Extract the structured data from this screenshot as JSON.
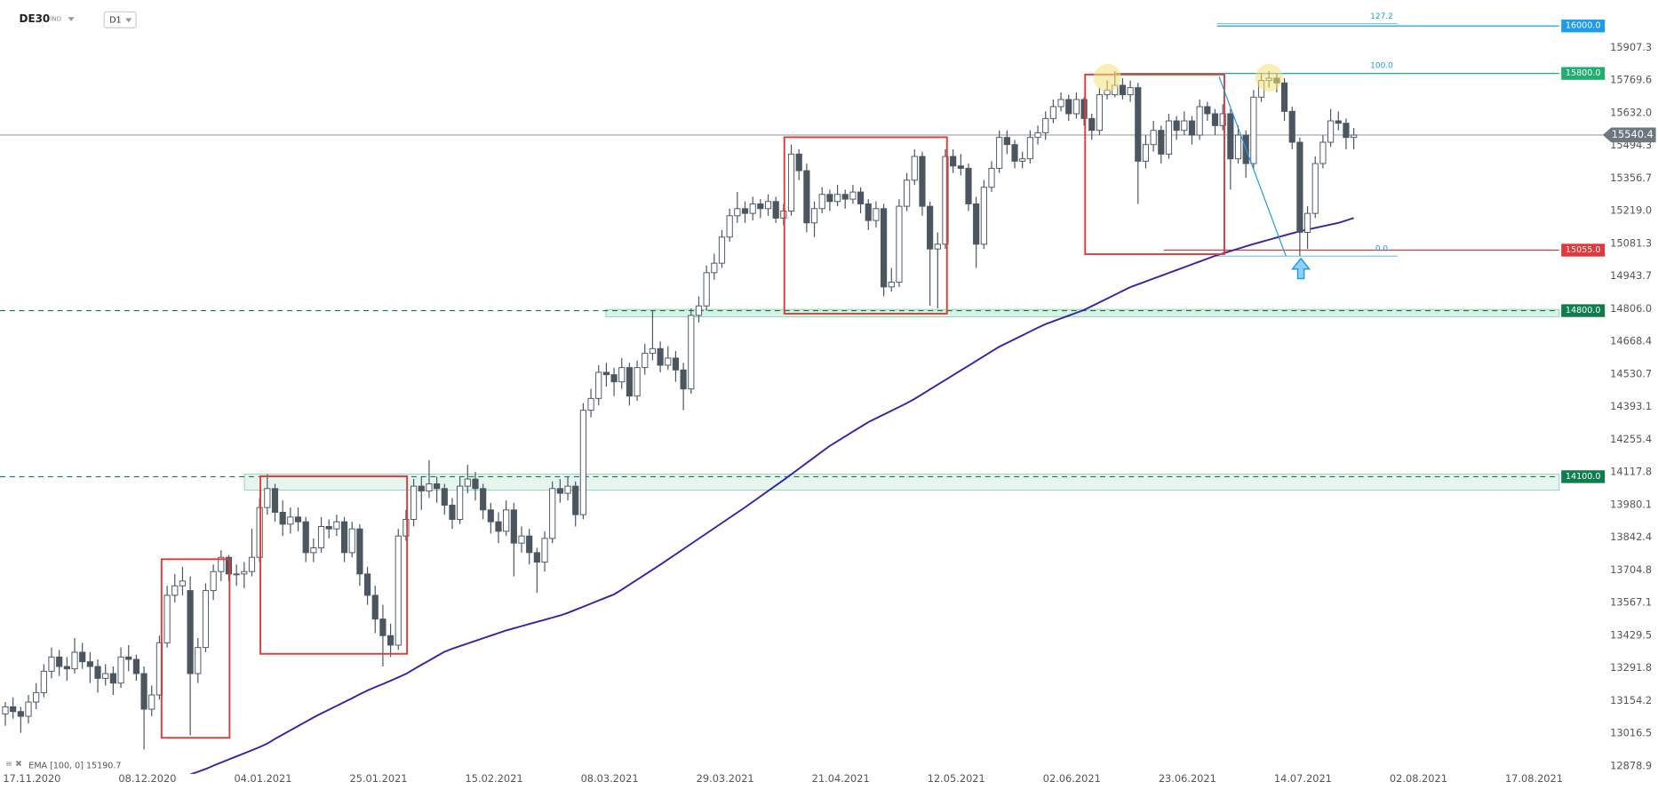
{
  "chart_data": {
    "type": "candlestick",
    "symbol": "DE30",
    "symbol_class": "IND",
    "timeframe": "D1",
    "up_color": "#ffffff",
    "down_color": "#4b5661",
    "ylim": [
      12847,
      16109
    ],
    "yticks": [
      15907.3,
      15769.6,
      {
        "value": 15632,
        "label": "15632.0"
      },
      15494.3,
      15356.7,
      {
        "value": 15219,
        "label": "15219.0"
      },
      15081.3,
      14943.7,
      {
        "value": 14806,
        "label": "14806.0"
      },
      14668.4,
      14530.7,
      14393.1,
      14255.4,
      14117.8,
      13980.1,
      13842.4,
      13704.8,
      13567.1,
      13429.5,
      13291.8,
      13154.2,
      13016.5,
      12878.9
    ],
    "xtick_labels": [
      "17.11.2020",
      "08.12.2020",
      "04.01.2021",
      "25.01.2021",
      "15.02.2021",
      "08.03.2021",
      "29.03.2021",
      "21.04.2021",
      "12.05.2021",
      "02.06.2021",
      "23.06.2021",
      "14.07.2021",
      "02.08.2021",
      "17.08.2021"
    ],
    "candles": [
      [
        13100,
        13150,
        13050,
        13130
      ],
      [
        13130,
        13170,
        13080,
        13110
      ],
      [
        13110,
        13130,
        13020,
        13090
      ],
      [
        13090,
        13180,
        13060,
        13150
      ],
      [
        13150,
        13230,
        13120,
        13190
      ],
      [
        13190,
        13310,
        13170,
        13280
      ],
      [
        13280,
        13380,
        13250,
        13340
      ],
      [
        13340,
        13370,
        13260,
        13300
      ],
      [
        13300,
        13340,
        13240,
        13290
      ],
      [
        13290,
        13420,
        13270,
        13360
      ],
      [
        13360,
        13400,
        13290,
        13320
      ],
      [
        13320,
        13360,
        13230,
        13300
      ],
      [
        13300,
        13330,
        13190,
        13250
      ],
      [
        13250,
        13310,
        13220,
        13270
      ],
      [
        13270,
        13300,
        13180,
        13230
      ],
      [
        13230,
        13380,
        13210,
        13340
      ],
      [
        13340,
        13390,
        13280,
        13330
      ],
      [
        13330,
        13350,
        13240,
        13270
      ],
      [
        13270,
        13300,
        12950,
        13120
      ],
      [
        13120,
        13220,
        13090,
        13180
      ],
      [
        13180,
        13430,
        13160,
        13400
      ],
      [
        13400,
        13640,
        13380,
        13600
      ],
      [
        13600,
        13690,
        13570,
        13640
      ],
      [
        13640,
        13720,
        13600,
        13660
      ],
      [
        13620,
        13680,
        13010,
        13270
      ],
      [
        13270,
        13420,
        13230,
        13380
      ],
      [
        13380,
        13650,
        13360,
        13620
      ],
      [
        13620,
        13730,
        13580,
        13700
      ],
      [
        13700,
        13790,
        13660,
        13760
      ],
      [
        13760,
        13770,
        13660,
        13690
      ],
      [
        13690,
        13730,
        13640,
        13690
      ],
      [
        13690,
        13740,
        13630,
        13700
      ],
      [
        13700,
        13880,
        13680,
        13760
      ],
      [
        13760,
        14010,
        13740,
        13970
      ],
      [
        13970,
        14110,
        13940,
        14050
      ],
      [
        14050,
        14070,
        13910,
        13950
      ],
      [
        13950,
        14000,
        13850,
        13900
      ],
      [
        13900,
        13970,
        13860,
        13930
      ],
      [
        13930,
        13970,
        13870,
        13910
      ],
      [
        13910,
        13930,
        13740,
        13780
      ],
      [
        13780,
        13840,
        13740,
        13800
      ],
      [
        13800,
        13930,
        13780,
        13890
      ],
      [
        13890,
        13920,
        13840,
        13880
      ],
      [
        13880,
        13940,
        13850,
        13910
      ],
      [
        13910,
        13930,
        13740,
        13780
      ],
      [
        13780,
        13910,
        13760,
        13880
      ],
      [
        13880,
        13900,
        13640,
        13690
      ],
      [
        13690,
        13720,
        13560,
        13600
      ],
      [
        13600,
        13640,
        13440,
        13500
      ],
      [
        13500,
        13560,
        13300,
        13430
      ],
      [
        13430,
        13480,
        13340,
        13390
      ],
      [
        13390,
        13880,
        13370,
        13850
      ],
      [
        13850,
        13960,
        13830,
        13920
      ],
      [
        13920,
        14090,
        13890,
        14060
      ],
      [
        14060,
        14100,
        13960,
        14040
      ],
      [
        14040,
        14170,
        14010,
        14070
      ],
      [
        14070,
        14100,
        13990,
        14050
      ],
      [
        14050,
        14070,
        13940,
        13980
      ],
      [
        13980,
        14010,
        13880,
        13920
      ],
      [
        13920,
        14100,
        13900,
        14060
      ],
      [
        14060,
        14150,
        14030,
        14090
      ],
      [
        14090,
        14120,
        14000,
        14050
      ],
      [
        14050,
        14070,
        13920,
        13960
      ],
      [
        13960,
        13990,
        13860,
        13910
      ],
      [
        13910,
        13950,
        13820,
        13870
      ],
      [
        13870,
        14000,
        13850,
        13960
      ],
      [
        13960,
        13990,
        13680,
        13820
      ],
      [
        13820,
        13890,
        13780,
        13850
      ],
      [
        13850,
        13880,
        13730,
        13780
      ],
      [
        13780,
        13800,
        13610,
        13740
      ],
      [
        13740,
        13870,
        13700,
        13840
      ],
      [
        13840,
        14080,
        13820,
        14050
      ],
      [
        14050,
        14090,
        13990,
        14030
      ],
      [
        14030,
        14100,
        14000,
        14060
      ],
      [
        14060,
        14080,
        13890,
        13940
      ],
      [
        13940,
        14410,
        13920,
        14380
      ],
      [
        14380,
        14470,
        14350,
        14430
      ],
      [
        14430,
        14570,
        14400,
        14540
      ],
      [
        14540,
        14580,
        14480,
        14530
      ],
      [
        14530,
        14560,
        14440,
        14500
      ],
      [
        14500,
        14600,
        14470,
        14560
      ],
      [
        14560,
        14580,
        14400,
        14440
      ],
      [
        14440,
        14590,
        14420,
        14560
      ],
      [
        14560,
        14660,
        14530,
        14620
      ],
      [
        14620,
        14800,
        14590,
        14640
      ],
      [
        14640,
        14670,
        14540,
        14570
      ],
      [
        14570,
        14650,
        14550,
        14600
      ],
      [
        14600,
        14630,
        14500,
        14550
      ],
      [
        14550,
        14580,
        14380,
        14470
      ],
      [
        14470,
        14810,
        14450,
        14780
      ],
      [
        14780,
        14860,
        14750,
        14820
      ],
      [
        14820,
        14990,
        14800,
        14960
      ],
      [
        14960,
        15040,
        14930,
        15000
      ],
      [
        15000,
        15140,
        14980,
        15110
      ],
      [
        15110,
        15230,
        15090,
        15200
      ],
      [
        15200,
        15300,
        15170,
        15230
      ],
      [
        15230,
        15260,
        15170,
        15210
      ],
      [
        15210,
        15280,
        15180,
        15250
      ],
      [
        15250,
        15270,
        15190,
        15230
      ],
      [
        15230,
        15290,
        15200,
        15260
      ],
      [
        15260,
        15280,
        15170,
        15190
      ],
      [
        15190,
        15250,
        15160,
        15220
      ],
      [
        15220,
        15500,
        15200,
        15460
      ],
      [
        15460,
        15480,
        15350,
        15390
      ],
      [
        15390,
        15420,
        15130,
        15170
      ],
      [
        15170,
        15260,
        15110,
        15230
      ],
      [
        15230,
        15320,
        15210,
        15290
      ],
      [
        15290,
        15310,
        15220,
        15260
      ],
      [
        15260,
        15330,
        15240,
        15290
      ],
      [
        15290,
        15310,
        15230,
        15270
      ],
      [
        15270,
        15330,
        15250,
        15300
      ],
      [
        15300,
        15320,
        15210,
        15250
      ],
      [
        15250,
        15270,
        15140,
        15180
      ],
      [
        15180,
        15260,
        15150,
        15230
      ],
      [
        15230,
        15250,
        14860,
        14900
      ],
      [
        14900,
        14980,
        14880,
        14920
      ],
      [
        14920,
        15270,
        14900,
        15240
      ],
      [
        15240,
        15380,
        15220,
        15350
      ],
      [
        15350,
        15480,
        15330,
        15450
      ],
      [
        15450,
        15470,
        15200,
        15240
      ],
      [
        15240,
        15260,
        14820,
        15060
      ],
      [
        15060,
        15130,
        14810,
        15080
      ],
      [
        15080,
        15480,
        15060,
        15450
      ],
      [
        15450,
        15480,
        15380,
        15410
      ],
      [
        15410,
        15460,
        15370,
        15400
      ],
      [
        15400,
        15420,
        15220,
        15250
      ],
      [
        15250,
        15280,
        14980,
        15080
      ],
      [
        15080,
        15350,
        15060,
        15320
      ],
      [
        15320,
        15430,
        15300,
        15400
      ],
      [
        15400,
        15560,
        15380,
        15530
      ],
      [
        15530,
        15560,
        15460,
        15500
      ],
      [
        15500,
        15520,
        15400,
        15430
      ],
      [
        15430,
        15470,
        15400,
        15440
      ],
      [
        15440,
        15560,
        15420,
        15530
      ],
      [
        15530,
        15580,
        15500,
        15550
      ],
      [
        15550,
        15640,
        15520,
        15610
      ],
      [
        15610,
        15690,
        15590,
        15660
      ],
      [
        15660,
        15720,
        15640,
        15690
      ],
      [
        15690,
        15710,
        15600,
        15630
      ],
      [
        15630,
        15720,
        15610,
        15690
      ],
      [
        15690,
        15700,
        15580,
        15610
      ],
      [
        15610,
        15630,
        15520,
        15560
      ],
      [
        15560,
        15740,
        15540,
        15710
      ],
      [
        15710,
        15770,
        15690,
        15730
      ],
      [
        15710,
        15810,
        15700,
        15750
      ],
      [
        15750,
        15780,
        15690,
        15710
      ],
      [
        15710,
        15770,
        15680,
        15740
      ],
      [
        15740,
        15760,
        15250,
        15430
      ],
      [
        15430,
        15540,
        15400,
        15500
      ],
      [
        15500,
        15600,
        15470,
        15560
      ],
      [
        15560,
        15580,
        15420,
        15460
      ],
      [
        15460,
        15630,
        15440,
        15600
      ],
      [
        15600,
        15620,
        15520,
        15560
      ],
      [
        15560,
        15640,
        15540,
        15600
      ],
      [
        15600,
        15620,
        15500,
        15540
      ],
      [
        15540,
        15690,
        15520,
        15660
      ],
      [
        15660,
        15680,
        15600,
        15630
      ],
      [
        15630,
        15650,
        15540,
        15580
      ],
      [
        15580,
        15670,
        15560,
        15630
      ],
      [
        15630,
        15650,
        15310,
        15440
      ],
      [
        15440,
        15580,
        15420,
        15540
      ],
      [
        15540,
        15560,
        15360,
        15420
      ],
      [
        15420,
        15730,
        15400,
        15700
      ],
      [
        15700,
        15800,
        15680,
        15770
      ],
      [
        15770,
        15810,
        15740,
        15780
      ],
      [
        15780,
        15800,
        15720,
        15760
      ],
      [
        15760,
        15780,
        15600,
        15640
      ],
      [
        15640,
        15660,
        15480,
        15510
      ],
      [
        15510,
        15530,
        15030,
        15130
      ],
      [
        15130,
        15240,
        15060,
        15210
      ],
      [
        15210,
        15450,
        15190,
        15420
      ],
      [
        15420,
        15540,
        15400,
        15510
      ],
      [
        15510,
        15650,
        15490,
        15600
      ],
      [
        15600,
        15640,
        15560,
        15590
      ],
      [
        15590,
        15610,
        15480,
        15530
      ],
      [
        15530,
        15570,
        15480,
        15540
      ]
    ],
    "ema": {
      "name": "EMA [100, 0]",
      "value": 15190.7,
      "color": "#3a22a6",
      "values": [
        null,
        null,
        null,
        null,
        null,
        null,
        null,
        null,
        null,
        null,
        null,
        null,
        null,
        null,
        null,
        null,
        null,
        null,
        null,
        null,
        null,
        null,
        null,
        null,
        12845,
        12856,
        12868,
        12882,
        12895,
        12908,
        12921,
        12934,
        12947,
        12960,
        12975,
        12995,
        13013,
        13031,
        13049,
        13067,
        13085,
        13102,
        13118,
        13134,
        13150,
        13166,
        13183,
        13199,
        13213,
        13226,
        13240,
        13254,
        13269,
        13288,
        13307,
        13325,
        13344,
        13362,
        13375,
        13386,
        13397,
        13408,
        13419,
        13430,
        13441,
        13452,
        13461,
        13470,
        13479,
        13488,
        13497,
        13506,
        13515,
        13526,
        13539,
        13552,
        13565,
        13578,
        13591,
        13604,
        13624,
        13645,
        13666,
        13687,
        13708,
        13729,
        13751,
        13773,
        13795,
        13817,
        13839,
        13861,
        13883,
        13905,
        13927,
        13949,
        13971,
        13994,
        14017,
        14040,
        14063,
        14086,
        14110,
        14134,
        14158,
        14182,
        14206,
        14230,
        14250,
        14270,
        14290,
        14310,
        14330,
        14346,
        14362,
        14378,
        14394,
        14410,
        14428,
        14448,
        14468,
        14488,
        14508,
        14528,
        14548,
        14568,
        14588,
        14608,
        14628,
        14648,
        14664,
        14680,
        14696,
        14712,
        14728,
        14743,
        14755,
        14767,
        14779,
        14791,
        14803,
        14819,
        14835,
        14851,
        14867,
        14883,
        14899,
        14911,
        14923,
        14935,
        14947,
        14959,
        14971,
        14983,
        14995,
        15007,
        15019,
        15031,
        15041,
        15051,
        15061,
        15071,
        15081,
        15090,
        15099,
        15108,
        15117,
        15126,
        15135,
        15142,
        15149,
        15156,
        15163,
        15170,
        15180,
        15190.7
      ]
    },
    "levels": [
      {
        "value": 16000,
        "label": "16000.0",
        "color": "#1e9be9",
        "dashed": false
      },
      {
        "value": 15800,
        "label": "15800.0",
        "color": "#1fae6e",
        "dashed": false
      },
      {
        "value": 15055,
        "label": "15055.0",
        "color": "#e0393b",
        "dashed": false
      },
      {
        "value": 14800,
        "label": "14800.0",
        "color": "#0d7d4d",
        "dashed": true
      },
      {
        "value": 14100,
        "label": "14100.0",
        "color": "#0d7d4d",
        "dashed": true
      }
    ],
    "current_price": {
      "value": 15540.4,
      "color": "#6d7780"
    },
    "fib": {
      "color": "#1e9be9",
      "levels": [
        127.2,
        {
          "value": 100,
          "label": "100.0"
        },
        {
          "value": 0,
          "label": "0.0"
        }
      ]
    }
  }
}
